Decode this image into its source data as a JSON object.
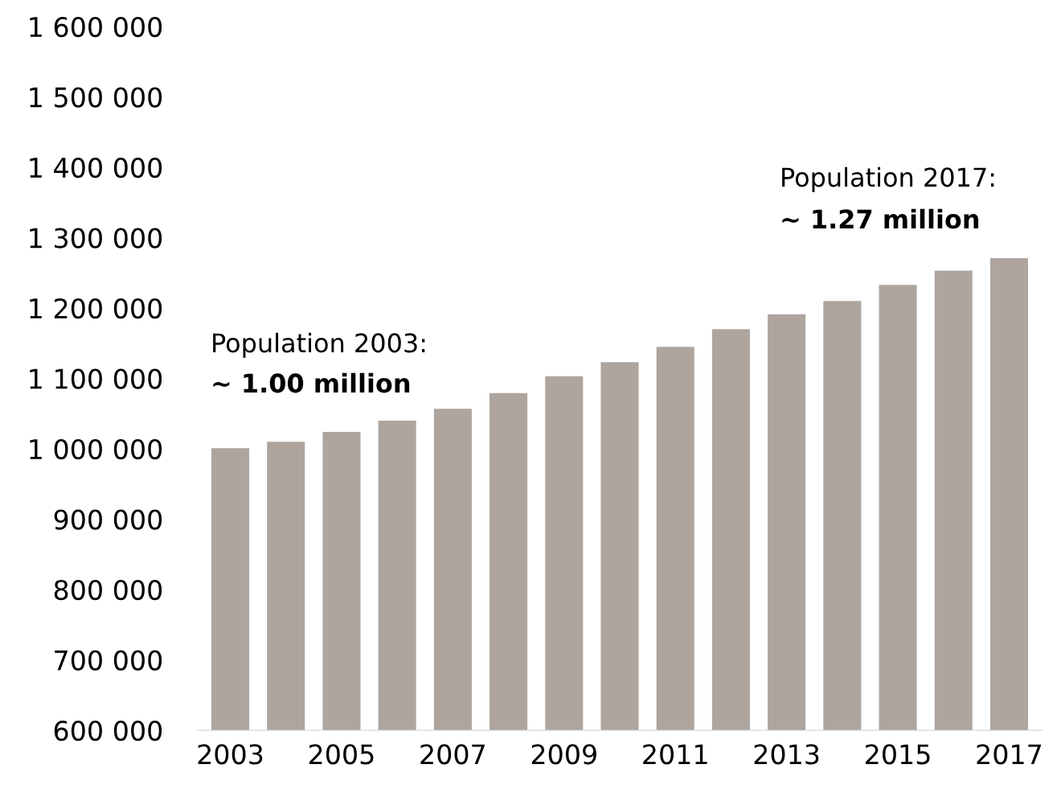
{
  "chart_data": {
    "type": "bar",
    "categories": [
      "2003",
      null,
      "2005",
      null,
      "2007",
      null,
      "2009",
      null,
      "2011",
      null,
      "2013",
      null,
      "2015",
      null,
      "2017"
    ],
    "values": [
      1001000,
      1010000,
      1024000,
      1040000,
      1057000,
      1079000,
      1103000,
      1123000,
      1145000,
      1170000,
      1191000,
      1210000,
      1233000,
      1253000,
      1271000
    ],
    "color": "#aea59e",
    "ylim": [
      600000,
      1600000
    ],
    "yticks": [
      {
        "value": 600000,
        "label": "600 000"
      },
      {
        "value": 700000,
        "label": "700 000"
      },
      {
        "value": 800000,
        "label": "800 000"
      },
      {
        "value": 900000,
        "label": "900 000"
      },
      {
        "value": 1000000,
        "label": "1 000 000"
      },
      {
        "value": 1100000,
        "label": "1 100 000"
      },
      {
        "value": 1200000,
        "label": "1 200 000"
      },
      {
        "value": 1300000,
        "label": "1 300 000"
      },
      {
        "value": 1400000,
        "label": "1 400 000"
      },
      {
        "value": 1500000,
        "label": "1 500 000"
      },
      {
        "value": 1600000,
        "label": "1 600 000"
      }
    ],
    "grid": false,
    "legend": false,
    "annotations": [
      "Population 2003:",
      "~ 1.00 million",
      "Population 2017:",
      "~ 1.27 million"
    ]
  }
}
